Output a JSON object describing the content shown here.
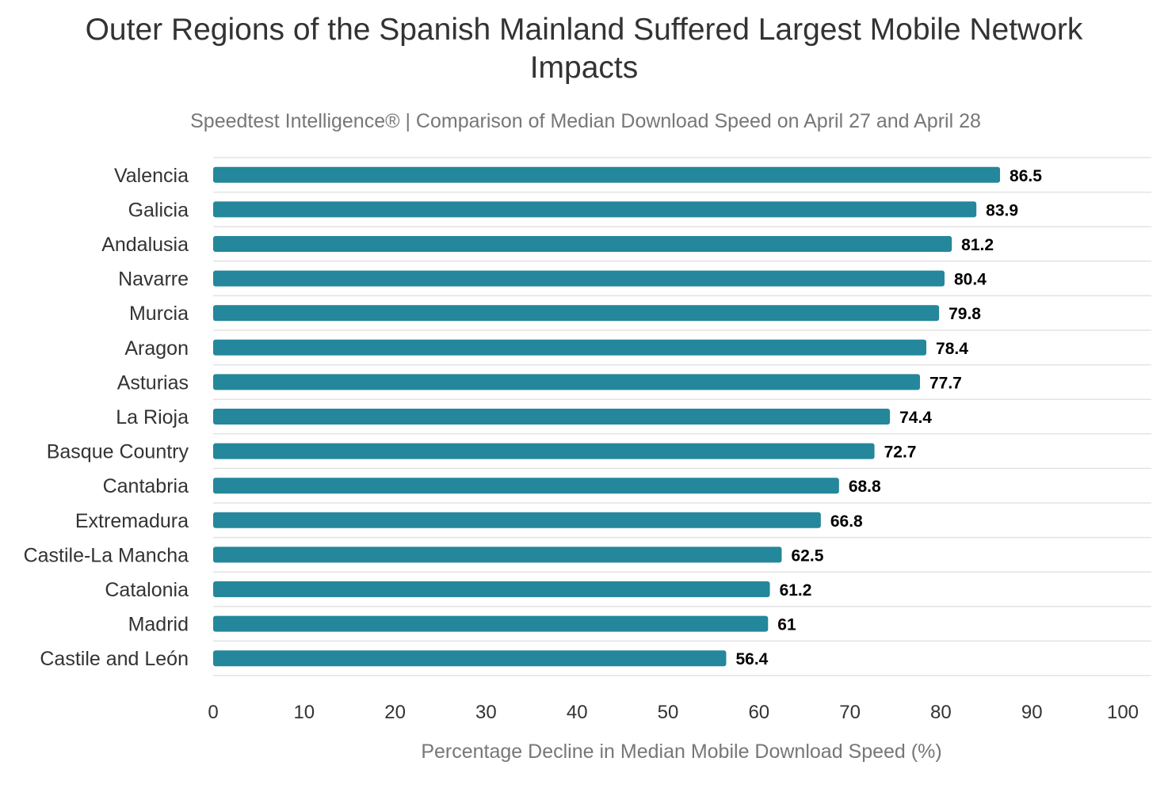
{
  "chart_data": {
    "type": "bar",
    "orientation": "horizontal",
    "title": "Outer Regions of the Spanish Mainland Suffered Largest Mobile Network Impacts",
    "subtitle": "Speedtest Intelligence® | Comparison of Median Download Speed on April 27 and April 28",
    "xlabel": "Percentage Decline in Median Mobile Download Speed (%)",
    "ylabel": "",
    "xlim": [
      0,
      100
    ],
    "xticks": [
      0,
      10,
      20,
      30,
      40,
      50,
      60,
      70,
      80,
      90,
      100
    ],
    "grid": "horizontal row separators",
    "bar_color": "#24879b",
    "categories": [
      "Valencia",
      "Galicia",
      "Andalusia",
      "Navarre",
      "Murcia",
      "Aragon",
      "Asturias",
      "La Rioja",
      "Basque Country",
      "Cantabria",
      "Extremadura",
      "Castile-La Mancha",
      "Catalonia",
      "Madrid",
      "Castile and León"
    ],
    "values": [
      86.5,
      83.9,
      81.2,
      80.4,
      79.8,
      78.4,
      77.7,
      74.4,
      72.7,
      68.8,
      66.8,
      62.5,
      61.2,
      61,
      56.4
    ]
  }
}
